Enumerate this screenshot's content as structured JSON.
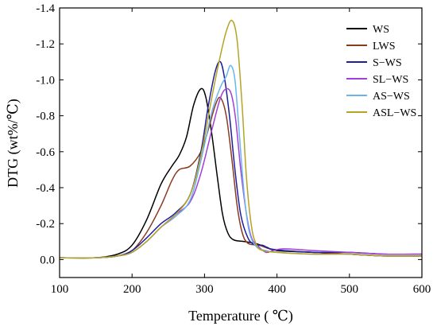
{
  "chart_data": {
    "type": "line",
    "title": "",
    "xlabel": "Temperature ( ℃)",
    "ylabel": "DTG (wt%/℃)",
    "xlim": [
      100,
      600
    ],
    "ylim": [
      0.1,
      -1.4
    ],
    "y_axis_inverted": true,
    "grid": false,
    "legend_position": "top-right",
    "x_ticks": [
      "100",
      "200",
      "300",
      "400",
      "500",
      "600"
    ],
    "y_ticks": [
      "0.0",
      "-0.2",
      "-0.4",
      "-0.6",
      "-0.8",
      "-1.0",
      "-1.2",
      "-1.4"
    ],
    "y_tick_values": [
      0,
      -0.2,
      -0.4,
      -0.6,
      -0.8,
      -1.0,
      -1.2,
      -1.4
    ],
    "series": [
      {
        "name": "WS",
        "color": "#000000",
        "points": [
          [
            100,
            -0.01
          ],
          [
            150,
            -0.01
          ],
          [
            180,
            -0.03
          ],
          [
            200,
            -0.08
          ],
          [
            220,
            -0.22
          ],
          [
            240,
            -0.42
          ],
          [
            255,
            -0.52
          ],
          [
            265,
            -0.58
          ],
          [
            275,
            -0.68
          ],
          [
            285,
            -0.86
          ],
          [
            295,
            -0.95
          ],
          [
            302,
            -0.9
          ],
          [
            310,
            -0.7
          ],
          [
            318,
            -0.45
          ],
          [
            325,
            -0.25
          ],
          [
            332,
            -0.15
          ],
          [
            340,
            -0.11
          ],
          [
            355,
            -0.1
          ],
          [
            370,
            -0.09
          ],
          [
            385,
            -0.07
          ],
          [
            400,
            -0.05
          ],
          [
            450,
            -0.04
          ],
          [
            500,
            -0.03
          ],
          [
            550,
            -0.02
          ],
          [
            600,
            -0.02
          ]
        ]
      },
      {
        "name": "LWS",
        "color": "#8B3A1E",
        "points": [
          [
            100,
            -0.01
          ],
          [
            150,
            -0.01
          ],
          [
            180,
            -0.02
          ],
          [
            200,
            -0.05
          ],
          [
            220,
            -0.15
          ],
          [
            240,
            -0.3
          ],
          [
            255,
            -0.44
          ],
          [
            265,
            -0.5
          ],
          [
            280,
            -0.52
          ],
          [
            295,
            -0.6
          ],
          [
            305,
            -0.72
          ],
          [
            315,
            -0.86
          ],
          [
            322,
            -0.9
          ],
          [
            330,
            -0.8
          ],
          [
            338,
            -0.55
          ],
          [
            345,
            -0.3
          ],
          [
            352,
            -0.15
          ],
          [
            360,
            -0.09
          ],
          [
            375,
            -0.08
          ],
          [
            390,
            -0.06
          ],
          [
            410,
            -0.05
          ],
          [
            450,
            -0.04
          ],
          [
            500,
            -0.03
          ],
          [
            550,
            -0.02
          ],
          [
            600,
            -0.02
          ]
        ]
      },
      {
        "name": "S−WS",
        "color": "#1E1E9E",
        "points": [
          [
            100,
            -0.01
          ],
          [
            150,
            -0.01
          ],
          [
            180,
            -0.02
          ],
          [
            200,
            -0.05
          ],
          [
            220,
            -0.12
          ],
          [
            240,
            -0.2
          ],
          [
            260,
            -0.26
          ],
          [
            280,
            -0.36
          ],
          [
            295,
            -0.6
          ],
          [
            305,
            -0.85
          ],
          [
            315,
            -1.05
          ],
          [
            322,
            -1.1
          ],
          [
            328,
            -1.0
          ],
          [
            335,
            -0.78
          ],
          [
            342,
            -0.5
          ],
          [
            350,
            -0.25
          ],
          [
            360,
            -0.12
          ],
          [
            370,
            -0.08
          ],
          [
            380,
            -0.08
          ],
          [
            390,
            -0.06
          ],
          [
            410,
            -0.05
          ],
          [
            450,
            -0.04
          ],
          [
            500,
            -0.04
          ],
          [
            550,
            -0.03
          ],
          [
            600,
            -0.03
          ]
        ]
      },
      {
        "name": "SL−WS",
        "color": "#A040D8",
        "points": [
          [
            100,
            -0.01
          ],
          [
            150,
            -0.01
          ],
          [
            180,
            -0.02
          ],
          [
            200,
            -0.04
          ],
          [
            220,
            -0.1
          ],
          [
            240,
            -0.18
          ],
          [
            260,
            -0.25
          ],
          [
            280,
            -0.32
          ],
          [
            295,
            -0.48
          ],
          [
            310,
            -0.72
          ],
          [
            322,
            -0.9
          ],
          [
            330,
            -0.95
          ],
          [
            337,
            -0.92
          ],
          [
            343,
            -0.78
          ],
          [
            350,
            -0.5
          ],
          [
            358,
            -0.25
          ],
          [
            365,
            -0.12
          ],
          [
            375,
            -0.07
          ],
          [
            385,
            -0.04
          ],
          [
            395,
            -0.05
          ],
          [
            410,
            -0.06
          ],
          [
            450,
            -0.05
          ],
          [
            500,
            -0.04
          ],
          [
            550,
            -0.03
          ],
          [
            600,
            -0.03
          ]
        ]
      },
      {
        "name": "AS−WS",
        "color": "#6BB4EE",
        "points": [
          [
            100,
            -0.01
          ],
          [
            150,
            -0.01
          ],
          [
            180,
            -0.02
          ],
          [
            200,
            -0.04
          ],
          [
            220,
            -0.1
          ],
          [
            240,
            -0.18
          ],
          [
            260,
            -0.24
          ],
          [
            280,
            -0.33
          ],
          [
            295,
            -0.55
          ],
          [
            310,
            -0.82
          ],
          [
            322,
            -0.96
          ],
          [
            330,
            -1.02
          ],
          [
            336,
            -1.08
          ],
          [
            342,
            -1.0
          ],
          [
            348,
            -0.7
          ],
          [
            355,
            -0.35
          ],
          [
            362,
            -0.15
          ],
          [
            372,
            -0.07
          ],
          [
            385,
            -0.05
          ],
          [
            400,
            -0.04
          ],
          [
            450,
            -0.03
          ],
          [
            500,
            -0.03
          ],
          [
            550,
            -0.02
          ],
          [
            600,
            -0.02
          ]
        ]
      },
      {
        "name": "ASL−WS",
        "color": "#B5A424",
        "points": [
          [
            100,
            -0.01
          ],
          [
            150,
            -0.01
          ],
          [
            180,
            -0.02
          ],
          [
            200,
            -0.04
          ],
          [
            220,
            -0.1
          ],
          [
            240,
            -0.18
          ],
          [
            260,
            -0.25
          ],
          [
            280,
            -0.36
          ],
          [
            295,
            -0.58
          ],
          [
            310,
            -0.9
          ],
          [
            320,
            -1.1
          ],
          [
            330,
            -1.27
          ],
          [
            338,
            -1.33
          ],
          [
            345,
            -1.22
          ],
          [
            352,
            -0.85
          ],
          [
            358,
            -0.45
          ],
          [
            365,
            -0.18
          ],
          [
            372,
            -0.08
          ],
          [
            380,
            -0.05
          ],
          [
            400,
            -0.04
          ],
          [
            450,
            -0.03
          ],
          [
            500,
            -0.03
          ],
          [
            550,
            -0.02
          ],
          [
            600,
            -0.02
          ]
        ]
      }
    ]
  }
}
